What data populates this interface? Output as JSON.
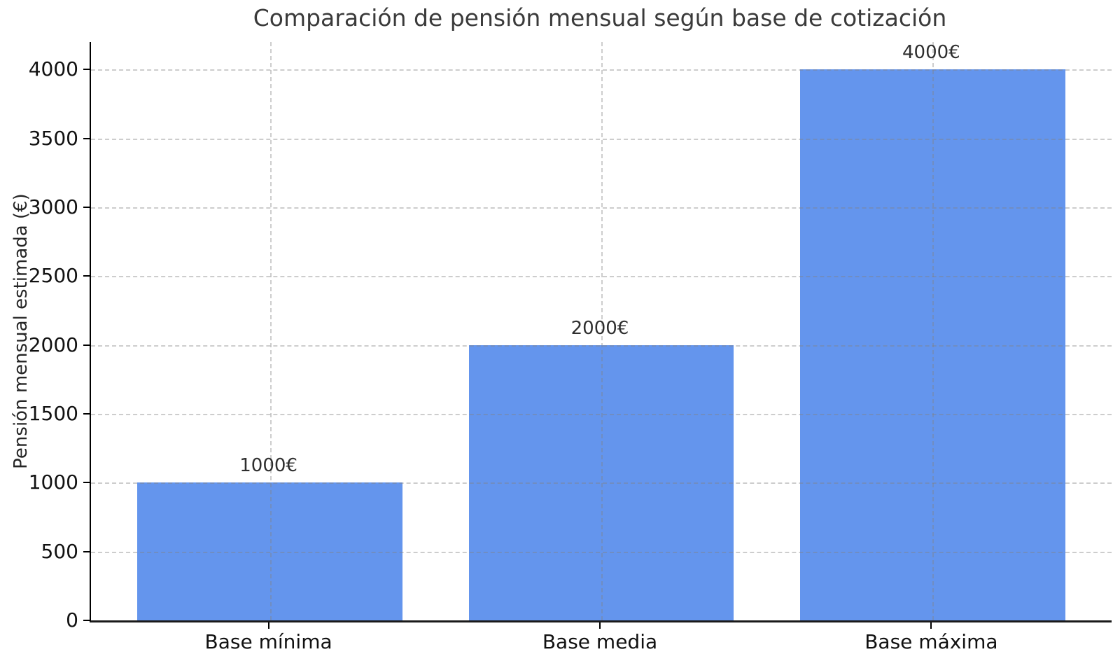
{
  "chart_data": {
    "type": "bar",
    "title": "Comparación de pensión mensual según base de cotización",
    "xlabel": "",
    "ylabel": "Pensión mensual estimada (€)",
    "categories": [
      "Base mínima",
      "Base media",
      "Base máxima"
    ],
    "values": [
      1000,
      2000,
      4000
    ],
    "bar_value_labels": [
      "1000€",
      "2000€",
      "4000€"
    ],
    "yticks": [
      0,
      500,
      1000,
      1500,
      2000,
      2500,
      3000,
      3500,
      4000
    ],
    "ylim": [
      0,
      4200
    ],
    "grid": "dashed, both axes, light gray, drawn over bars",
    "legend": "none",
    "colors": {
      "bar": "#6495ed",
      "grid_on_white": "#cccccc",
      "axis": "#000000",
      "title_text": "#3a3a3a",
      "tick_text": "#111111",
      "background": "#ffffff"
    }
  }
}
